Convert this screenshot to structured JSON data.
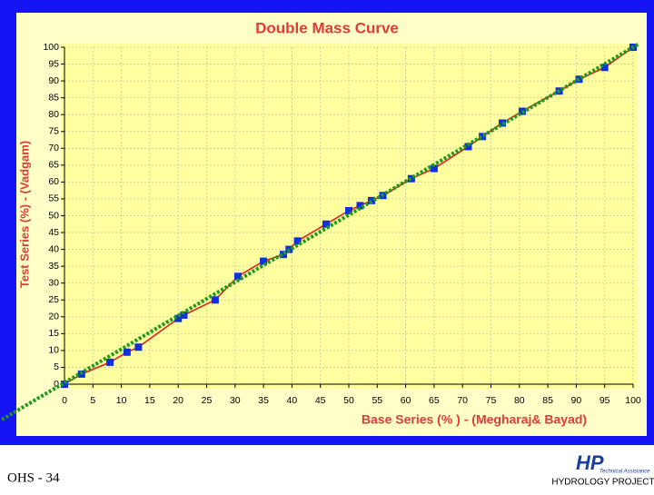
{
  "chart_data": {
    "type": "line",
    "title": "Double Mass Curve",
    "x_label": "Base Series (% ) - (Megharaj& Bayad)",
    "y_label": "Test Series (%) - (Vadgam)",
    "xlim": [
      0,
      100
    ],
    "ylim": [
      0,
      100
    ],
    "xticks": [
      0,
      5,
      10,
      15,
      20,
      25,
      30,
      35,
      40,
      45,
      50,
      55,
      60,
      65,
      70,
      75,
      80,
      85,
      90,
      95,
      100
    ],
    "yticks": [
      0,
      5,
      10,
      15,
      20,
      25,
      30,
      35,
      40,
      45,
      50,
      55,
      60,
      65,
      70,
      75,
      80,
      85,
      90,
      95,
      100
    ],
    "grid": true,
    "series": [
      {
        "color": "#e02020",
        "marker_color": "#1030e0",
        "x": [
          0,
          3,
          8,
          11,
          13,
          20,
          21,
          26.5,
          30.5,
          35,
          38.5,
          39.5,
          41,
          46,
          50,
          52,
          54,
          56,
          61,
          65,
          71,
          73.5,
          77,
          80.5,
          87,
          90.5,
          95,
          100
        ],
        "values": [
          0,
          3,
          6.5,
          9.5,
          11,
          19.5,
          20.5,
          25,
          32,
          36.5,
          38.5,
          40,
          42.5,
          47.5,
          51.5,
          53,
          54.5,
          56,
          61,
          64,
          70.5,
          73.5,
          77.5,
          81,
          87,
          90.5,
          94,
          100
        ]
      },
      {
        "color": "#1f9a1f",
        "style": "dotted",
        "x": [
          -11,
          101
        ],
        "values": [
          -10.5,
          101
        ]
      }
    ]
  },
  "footer": {
    "slide_number": "OHS - 34",
    "logo_mark": "HP",
    "logo_tagline": "Technical Assistance",
    "logo_name": "HYDROLOGY PROJECT"
  }
}
